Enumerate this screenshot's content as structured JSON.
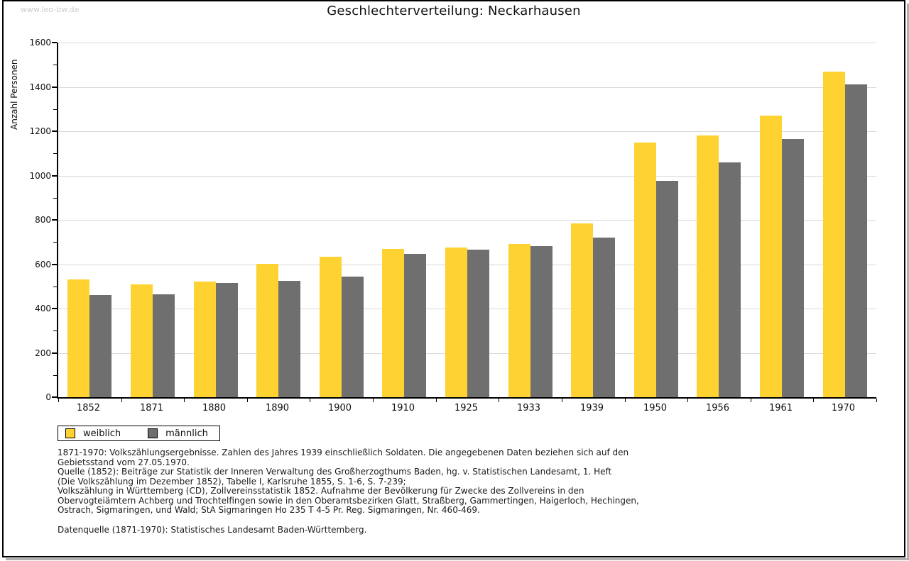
{
  "page": {
    "watermark": "www.leo-bw.de",
    "title": "Geschlechterverteilung: Neckarhausen"
  },
  "chart_data": {
    "type": "bar",
    "title": "Geschlechterverteilung: Neckarhausen",
    "xlabel": "",
    "ylabel": "Anzahl Personen",
    "ylim": [
      0,
      1600
    ],
    "ytick_step": 200,
    "yminor_step": 100,
    "grid": true,
    "legend_position": "bottom-left",
    "categories": [
      "1852",
      "1871",
      "1880",
      "1890",
      "1900",
      "1910",
      "1925",
      "1933",
      "1939",
      "1950",
      "1956",
      "1961",
      "1970"
    ],
    "series": [
      {
        "name": "weiblich",
        "color": "#fdd231",
        "values": [
          530,
          510,
          520,
          600,
          635,
          670,
          675,
          690,
          785,
          1150,
          1180,
          1270,
          1470
        ]
      },
      {
        "name": "männlich",
        "color": "#6f6f6f",
        "values": [
          460,
          465,
          515,
          525,
          545,
          645,
          665,
          680,
          720,
          975,
          1060,
          1165,
          1410
        ]
      }
    ]
  },
  "legend": {
    "items": [
      {
        "label": "weiblich",
        "color": "#fdd231"
      },
      {
        "label": "männlich",
        "color": "#6f6f6f"
      }
    ]
  },
  "footnotes": {
    "lines": [
      "1871-1970: Volkszählungsergebnisse. Zahlen des Jahres 1939 einschließlich Soldaten. Die angegebenen Daten beziehen sich auf den",
      "Gebietsstand vom 27.05.1970.",
      "Quelle (1852): Beiträge zur Statistik der Inneren Verwaltung des Großherzogthums Baden, hg. v. Statistischen Landesamt, 1. Heft",
      "(Die Volkszählung im Dezember 1852), Tabelle I, Karlsruhe 1855, S. 1-6, S. 7-239;",
      "Volkszählung in Württemberg (CD), Zollvereinsstatistik 1852. Aufnahme der Bevölkerung für Zwecke des Zollvereins in den",
      "Obervogteiämtern Achberg und Trochtelfingen sowie in den Oberamtsbezirken Glatt, Straßberg, Gammertingen, Haigerloch, Hechingen,",
      "Ostrach, Sigmaringen, und Wald; StA Sigmaringen Ho 235 T 4-5 Pr. Reg. Sigmaringen, Nr. 460-469."
    ],
    "datasource": "Datenquelle (1871-1970): Statistisches Landesamt Baden-Württemberg."
  },
  "colors": {
    "female": "#fdd231",
    "male": "#6f6f6f",
    "gridline": "#d9d9d9",
    "axis": "#000000",
    "watermark": "#cccccc",
    "frame_shadow": "#b0b0b0"
  }
}
